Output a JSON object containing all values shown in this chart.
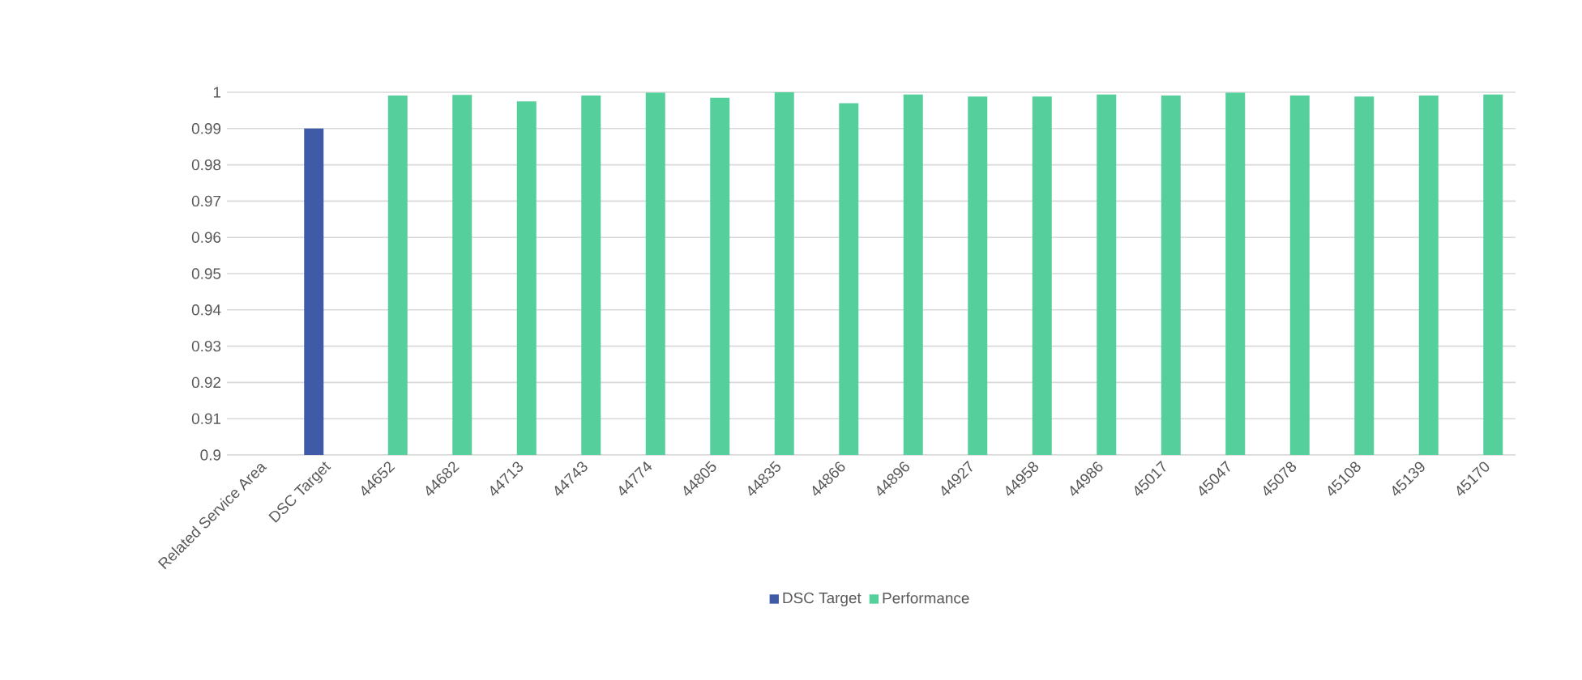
{
  "chart_data": {
    "type": "bar",
    "categories": [
      "Related Service Area",
      "DSC Target",
      "44652",
      "44682",
      "44713",
      "44743",
      "44774",
      "44805",
      "44835",
      "44866",
      "44896",
      "44927",
      "44958",
      "44986",
      "45017",
      "45047",
      "45078",
      "45108",
      "45139",
      "45170"
    ],
    "series": [
      {
        "name": "DSC Target",
        "color": "#3f5aa6",
        "values": [
          null,
          0.99,
          null,
          null,
          null,
          null,
          null,
          null,
          null,
          null,
          null,
          null,
          null,
          null,
          null,
          null,
          null,
          null,
          null,
          null
        ]
      },
      {
        "name": "Performance",
        "color": "#55cf9b",
        "values": [
          null,
          null,
          0.9991,
          0.9993,
          0.9975,
          0.9991,
          0.9999,
          0.9985,
          1.0,
          0.997,
          0.9994,
          0.9988,
          0.9988,
          0.9994,
          0.9991,
          0.9999,
          0.9991,
          0.9988,
          0.9991,
          0.9994
        ]
      }
    ],
    "ylim": [
      0.9,
      1.0
    ],
    "yticks": [
      0.9,
      0.91,
      0.92,
      0.93,
      0.94,
      0.95,
      0.96,
      0.97,
      0.98,
      0.99,
      1
    ],
    "grid": "y",
    "legend": "bottom"
  }
}
